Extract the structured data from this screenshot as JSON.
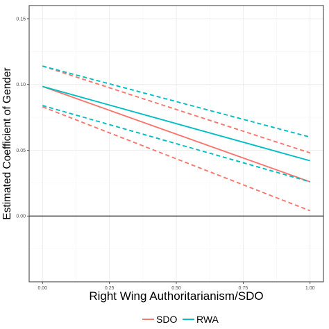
{
  "chart_data": {
    "type": "line",
    "xlabel": "Right Wing Authoritarianism/SDO",
    "ylabel": "Estimated Coefficient of Gender",
    "xlim": [
      -0.05,
      1.05
    ],
    "ylim": [
      -0.05,
      0.16
    ],
    "x_ticks": [
      "0.00",
      "0.25",
      "0.50",
      "0.75",
      "1.00"
    ],
    "y_ticks": [
      "0.00",
      "0.05",
      "0.10",
      "0.15"
    ],
    "grid": true,
    "legend_position": "bottom",
    "reference_line": {
      "y": 0,
      "color": "#333333"
    },
    "series": [
      {
        "name": "SDO",
        "color": "#F8766D",
        "x": [
          0,
          1
        ],
        "estimate": [
          0.0985,
          0.026
        ],
        "ci_upper": [
          0.114,
          0.048
        ],
        "ci_lower": [
          0.083,
          0.004
        ]
      },
      {
        "name": "RWA",
        "color": "#00BFC4",
        "x": [
          0,
          1
        ],
        "estimate": [
          0.0985,
          0.042
        ],
        "ci_upper": [
          0.114,
          0.06
        ],
        "ci_lower": [
          0.084,
          0.026
        ]
      }
    ]
  }
}
